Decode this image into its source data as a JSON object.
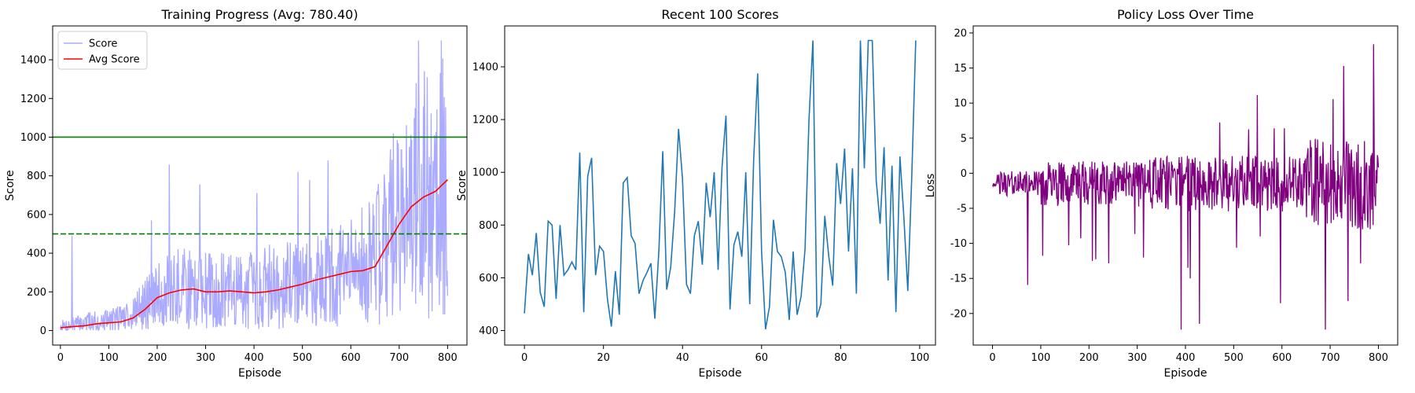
{
  "chart_data": [
    {
      "type": "line",
      "title": "Training Progress (Avg: 780.40)",
      "xlabel": "Episode",
      "ylabel": "Score",
      "xlim": [
        -16,
        840
      ],
      "ylim": [
        -75,
        1575
      ],
      "xticks": [
        0,
        100,
        200,
        300,
        400,
        500,
        600,
        700,
        800
      ],
      "yticks": [
        0,
        200,
        400,
        600,
        800,
        1000,
        1200,
        1400
      ],
      "legend": {
        "placement": "top-left",
        "entries": [
          "Score",
          "Avg Score"
        ]
      },
      "hlines": [
        {
          "y": 1000,
          "style": "solid",
          "color": "#008000"
        },
        {
          "y": 500,
          "style": "dashed",
          "color": "#008000"
        }
      ],
      "score_trend": {
        "x": [
          0,
          50,
          100,
          150,
          200,
          250,
          300,
          350,
          400,
          450,
          500,
          550,
          600,
          650,
          700,
          750,
          800
        ],
        "y": [
          20,
          40,
          50,
          90,
          180,
          220,
          210,
          200,
          220,
          230,
          240,
          270,
          300,
          370,
          590,
          700,
          780
        ]
      },
      "series": [
        {
          "name": "Score",
          "color": "#aaaaff",
          "episodes": 800
        },
        {
          "name": "Avg Score",
          "color": "#ff0000",
          "x": [
            0,
            25,
            50,
            75,
            100,
            125,
            150,
            175,
            200,
            225,
            250,
            275,
            300,
            325,
            350,
            375,
            400,
            425,
            450,
            475,
            500,
            525,
            550,
            575,
            600,
            625,
            650,
            675,
            700,
            725,
            750,
            775,
            800
          ],
          "y": [
            15,
            20,
            25,
            35,
            40,
            45,
            65,
            110,
            170,
            195,
            210,
            215,
            200,
            200,
            205,
            200,
            195,
            200,
            210,
            225,
            240,
            260,
            275,
            290,
            305,
            310,
            330,
            440,
            550,
            640,
            690,
            720,
            780
          ]
        }
      ]
    },
    {
      "type": "line",
      "title": "Recent 100 Scores",
      "xlabel": "Episode",
      "ylabel": "Score",
      "xlim": [
        -5,
        104
      ],
      "ylim": [
        345,
        1555
      ],
      "xticks": [
        0,
        20,
        40,
        60,
        80,
        100
      ],
      "yticks": [
        400,
        600,
        800,
        1000,
        1200,
        1400
      ],
      "series": [
        {
          "color": "#1f77b4",
          "x": [
            0,
            1,
            2,
            3,
            4,
            5,
            6,
            7,
            8,
            9,
            10,
            11,
            12,
            13,
            14,
            15,
            16,
            17,
            18,
            19,
            20,
            21,
            22,
            23,
            24,
            25,
            26,
            27,
            28,
            29,
            30,
            31,
            32,
            33,
            34,
            35,
            36,
            37,
            38,
            39,
            40,
            41,
            42,
            43,
            44,
            45,
            46,
            47,
            48,
            49,
            50,
            51,
            52,
            53,
            54,
            55,
            56,
            57,
            58,
            59,
            60,
            61,
            62,
            63,
            64,
            65,
            66,
            67,
            68,
            69,
            70,
            71,
            72,
            73,
            74,
            75,
            76,
            77,
            78,
            79,
            80,
            81,
            82,
            83,
            84,
            85,
            86,
            87,
            88,
            89,
            90,
            91,
            92,
            93,
            94,
            95,
            96,
            97,
            98,
            99
          ],
          "y": [
            465,
            690,
            610,
            770,
            545,
            490,
            815,
            800,
            520,
            800,
            610,
            630,
            660,
            630,
            1075,
            470,
            985,
            1055,
            610,
            720,
            700,
            520,
            415,
            625,
            460,
            960,
            980,
            760,
            730,
            540,
            590,
            620,
            655,
            445,
            700,
            1080,
            555,
            640,
            850,
            1165,
            975,
            575,
            540,
            760,
            815,
            650,
            960,
            830,
            1000,
            630,
            1020,
            1215,
            480,
            725,
            775,
            680,
            1000,
            500,
            1045,
            1375,
            700,
            405,
            490,
            820,
            700,
            680,
            620,
            440,
            700,
            460,
            530,
            710,
            1200,
            1500,
            450,
            500,
            835,
            680,
            570,
            1035,
            880,
            1090,
            700,
            1015,
            540,
            1500,
            1015,
            1500,
            1500,
            970,
            805,
            1095,
            590,
            1025,
            470,
            1060,
            830,
            550,
            980,
            1500
          ]
        }
      ]
    },
    {
      "type": "line",
      "title": "Policy Loss Over Time",
      "xlabel": "Episode",
      "ylabel": "Loss",
      "xlim": [
        -40,
        840
      ],
      "ylim": [
        -24.5,
        21
      ],
      "xticks": [
        0,
        100,
        200,
        300,
        400,
        500,
        600,
        700,
        800
      ],
      "yticks": [
        -20,
        -15,
        -10,
        -5,
        0,
        5,
        10,
        15,
        20
      ],
      "series": [
        {
          "color": "#800080",
          "episodes": 800
        }
      ]
    }
  ]
}
